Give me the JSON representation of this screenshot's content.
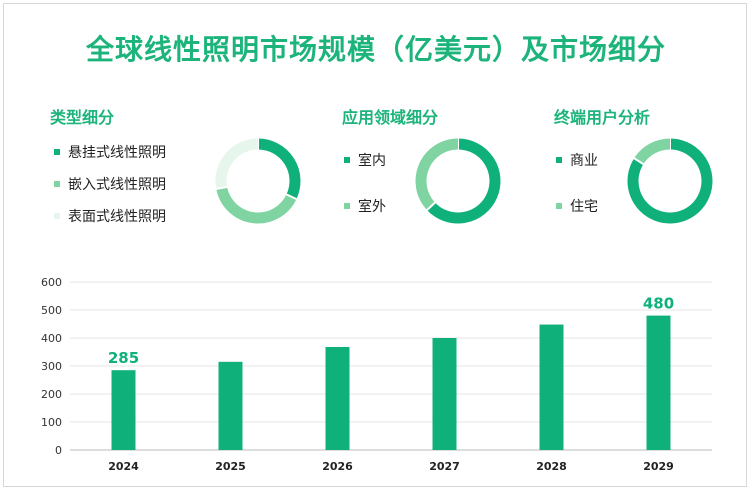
{
  "title": "全球线性照明市场规模（亿美元）及市场细分",
  "colors": {
    "dark": "#10b07a",
    "mid": "#7fd4a2",
    "light": "#e6f6ec"
  },
  "sections": [
    {
      "title": "类型细分",
      "items": [
        "悬挂式线性照明",
        "嵌入式线性照明",
        "表面式线性照明"
      ]
    },
    {
      "title": "应用领域细分",
      "items": [
        "室内",
        "室外"
      ]
    },
    {
      "title": "终端用户分析",
      "items": [
        "商业",
        "住宅"
      ]
    }
  ],
  "chart_data": [
    {
      "type": "pie",
      "title": "类型细分",
      "labels": [
        "悬挂式线性照明",
        "嵌入式线性照明",
        "表面式线性照明"
      ],
      "values": [
        32,
        40,
        28
      ]
    },
    {
      "type": "pie",
      "title": "应用领域细分",
      "labels": [
        "室内",
        "室外"
      ],
      "values": [
        63,
        37
      ]
    },
    {
      "type": "pie",
      "title": "终端用户分析",
      "labels": [
        "商业",
        "住宅"
      ],
      "values": [
        84,
        16
      ]
    },
    {
      "type": "bar",
      "categories": [
        "2024",
        "2025",
        "2026",
        "2027",
        "2028",
        "2029"
      ],
      "values": [
        285,
        315,
        368,
        400,
        448,
        480
      ],
      "data_labels": [
        "285",
        "",
        "",
        "",
        "",
        "480"
      ],
      "yticks": [
        "0",
        "100",
        "200",
        "300",
        "400",
        "500",
        "600"
      ],
      "ylim": [
        0,
        600
      ],
      "grid": true
    }
  ]
}
